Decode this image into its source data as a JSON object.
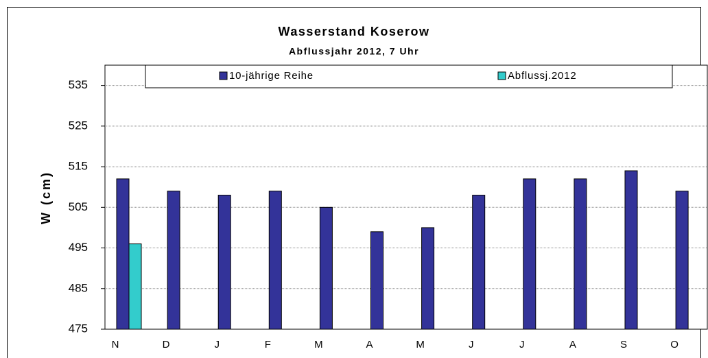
{
  "chart_data": {
    "type": "bar",
    "title": "Wasserstand Koserow",
    "subtitle": "Abflussjahr 2012, 7 Uhr",
    "y_label": "W (cm)",
    "categories": [
      "N",
      "D",
      "J",
      "F",
      "M",
      "A",
      "M",
      "J",
      "J",
      "A",
      "S",
      "O"
    ],
    "series": [
      {
        "name": "10-jährige Reihe",
        "color": "#333399",
        "values": [
          512,
          509,
          508,
          509,
          505,
          499,
          500,
          508,
          512,
          512,
          514,
          509
        ]
      },
      {
        "name": "Abflussj.2012",
        "color": "#33cccc",
        "values": [
          496,
          null,
          null,
          null,
          null,
          null,
          null,
          null,
          null,
          null,
          null,
          null
        ]
      }
    ],
    "ylim": [
      475,
      540
    ],
    "yticks": [
      475,
      485,
      495,
      505,
      515,
      525,
      535
    ],
    "grid": true,
    "legend": "top"
  }
}
